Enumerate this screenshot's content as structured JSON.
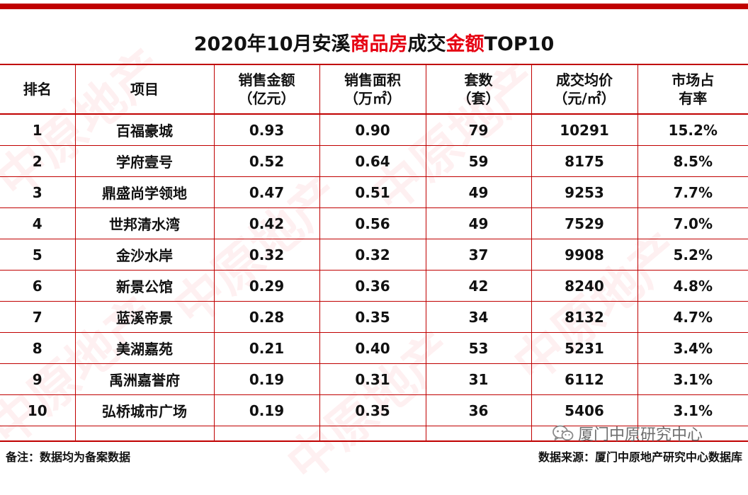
{
  "title": {
    "part1": "2020年10月安溪",
    "part2": "商品房",
    "part3": "成交",
    "part4": "金额",
    "part5": "TOP10"
  },
  "colors": {
    "accent_red": "#e60012",
    "border_red": "#c00000"
  },
  "table": {
    "headers": [
      {
        "line1": "排名",
        "line2": ""
      },
      {
        "line1": "项目",
        "line2": ""
      },
      {
        "line1": "销售金额",
        "line2": "（亿元）"
      },
      {
        "line1": "销售面积",
        "line2": "（万㎡）"
      },
      {
        "line1": "套数",
        "line2": "（套）"
      },
      {
        "line1": "成交均价",
        "line2": "（元/㎡）"
      },
      {
        "line1": "市场占",
        "line2": "有率"
      }
    ],
    "rows": [
      [
        "1",
        "百福豪城",
        "0.93",
        "0.90",
        "79",
        "10291",
        "15.2%"
      ],
      [
        "2",
        "学府壹号",
        "0.52",
        "0.64",
        "59",
        "8175",
        "8.5%"
      ],
      [
        "3",
        "鼎盛尚学领地",
        "0.47",
        "0.51",
        "49",
        "9253",
        "7.7%"
      ],
      [
        "4",
        "世邦清水湾",
        "0.42",
        "0.56",
        "49",
        "7529",
        "7.0%"
      ],
      [
        "5",
        "金沙水岸",
        "0.32",
        "0.32",
        "37",
        "9908",
        "5.2%"
      ],
      [
        "6",
        "新景公馆",
        "0.29",
        "0.36",
        "42",
        "8240",
        "4.8%"
      ],
      [
        "7",
        "蓝溪帝景",
        "0.28",
        "0.35",
        "34",
        "8132",
        "4.7%"
      ],
      [
        "8",
        "美湖嘉苑",
        "0.21",
        "0.40",
        "53",
        "5231",
        "3.4%"
      ],
      [
        "9",
        "禹洲嘉誉府",
        "0.19",
        "0.31",
        "31",
        "6112",
        "3.1%"
      ],
      [
        "10",
        "弘桥城市广场",
        "0.19",
        "0.35",
        "36",
        "5406",
        "3.1%"
      ]
    ]
  },
  "footer": {
    "note": "备注：数据均为备案数据",
    "source": "数据来源：厦门中原地产研究中心数据库"
  },
  "wechat": {
    "icon": "wechat-icon",
    "label": "厦门中原研究中心"
  },
  "watermark": {
    "text": "中原地产",
    "brand": "CENTALINE PROPERTY"
  }
}
